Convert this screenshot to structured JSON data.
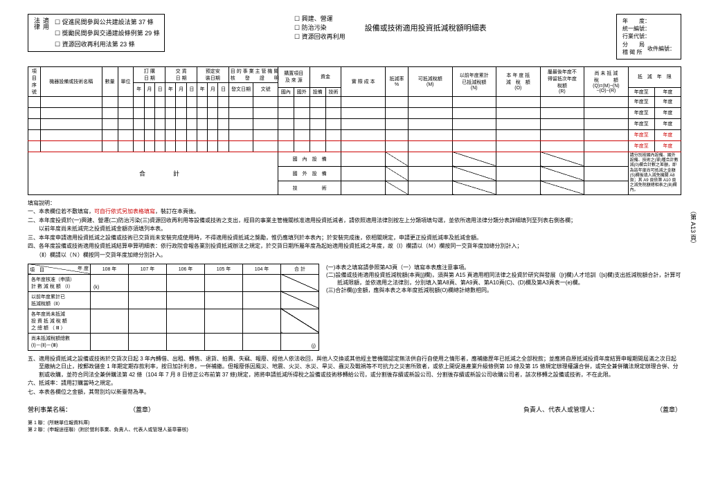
{
  "lawBox": {
    "labelTop": "適用",
    "labelBottom": "法律",
    "items": [
      "促進民間參與公共建設法第 37 條",
      "獎勵民間參與交通建設條例第 29 條",
      "資源回收再利用法第 23 條"
    ]
  },
  "centerBox": {
    "items": [
      "興建、營運",
      "防治污染",
      "資源回收再利用"
    ],
    "title": "設備或技術適用投資抵減稅額明細表"
  },
  "infoBox": {
    "rows": [
      "年　　度：",
      "統一編號：",
      "行業代號：",
      "分　　局",
      "稽 徵 所"
    ],
    "receipt": "收件編號："
  },
  "pageSide": "（第 A13 頁）",
  "mainTable": {
    "headers": {
      "seq": "項目序號",
      "name": "機器設備或技術名稱",
      "qty": "數量",
      "unit": "單位",
      "orderDate": "訂 購\n日 期",
      "deliverDate": "交 貨\n日 期",
      "scheduled": "預定安\n裝日期",
      "bizAuth": "目 的 事 業 主 管 機 關\n核　　發　　證　　明",
      "purchase": "購置項目\n及 來 源",
      "fund": "資金",
      "actualCost": "實 際 成 本",
      "rate": "抵減率\n%",
      "deductible": "可抵減稅額\n(M)",
      "prevDeducted": "以前年度累計\n已抵減稅額\n(N)",
      "currDeducted": "本 年 度 抵\n減　稅　額\n(O)",
      "lastYear": "屬最後年度不\n得留抵次年度\n稅額\n(R)",
      "netDeduct": "尚 未 抵 減\n稅　　　額\n(Q)=(M)−(N)\n−(O)−(R)",
      "deductYear": "抵　減　年　限",
      "ymd": [
        "年",
        "月",
        "日"
      ],
      "docDate": "發文日期",
      "docNo": "文號",
      "domestic": "國內",
      "foreign": "國外",
      "equipment": "設備",
      "tech": "技術",
      "yrTo": "年度至",
      "yr": "年度"
    },
    "sumRows": [
      {
        "label": "合",
        "label2": "計",
        "c1": "國　內　設　備"
      },
      {
        "c1": "國　外　設　備"
      },
      {
        "c1": "技　　　　　術"
      }
    ],
    "sideNote": "請分別按國內設備、國外設備、技術之(單)種合計數減(0)欄合計數之差額，即為該年度尚可抵減之金額(S)欄後填入減免機關 A8 頁；其 A9 頁依第 A10 頁之減免稅額總相表之(B)欄內。"
  },
  "notesTitle": "填寫說明：",
  "notes": [
    "一、本表欄位若不敷填寫，<span class='red'>可自行依式另加表格填寫</span>，裝訂在本頁後。",
    "二、本年度投資於(一)興建、營運(二)防治污染(三)資源回收再利用等設備或技術之支出，經目的事業主管機關核准適用投資抵減者，請依照適用法律別按左上分類項填勾選，並依所適用法律分類分表詳細填列至列表右側各欄；",
    "　　以前年度尚未抵減完之投資抵減金額亦須填列本表。",
    "三、本年度申請適用投資抵減之設備或技術已交貨尚未安裝完成使用時，不得適用投資抵減之獎勵，惟仍應填列於本表內；於安裝完成後，依相關規定，申請更正投資抵減率及抵減金額。",
    "四、各年度設備或技術適用投資抵減結算申算明細表：依行政院會報各業別投資抵減辦法之規定，於交貨日期所屬年度為起始適用投資抵減之年度，故（Ⅰ）欄請以（Ｍ）欄按同一交貨年度加總分別計入；",
    "　　（Ⅱ）欄請以（Ｎ）欄按同一交貨年度加總分別計入。"
  ],
  "yearTable": {
    "headerYear": "年 度",
    "headerItem": "項　目",
    "years": [
      "108 年",
      "107 年",
      "106 年",
      "105 年",
      "104 年",
      "合 計"
    ],
    "rows": [
      "各年度核准（申請）\n計 數 減 稅 額 （Ⅰ）",
      "以前年度累計已\n抵減稅額（Ⅱ）",
      "各年度尚未抵減\n投 資 抵 減 稅 額\n之 總 額 （ Ⅲ ）",
      "尚未抵減稅額總數\n(Ⅰ)－(Ⅱ)－(Ⅲ)"
    ],
    "marks": {
      "k": "(k)",
      "j": "(j)"
    }
  },
  "yearNotes": [
    "(一)本表之填寫請參照第A3頁（一）填寫本表應注意事項。",
    "(二)設備或技術適用投資抵減稅額(本頁[j]欄)，須與第 A15 頁適用相同法律之投資於研究與發展（[r]欄)人才培訓（[s]欄)支出抵減稅額合計，計算可抵減限額，並依適用之法律別，分別填入第A8頁、第A9頁、第A10頁(C)、(D)欄及第A3頁表一(e)欄。",
    "(三)合計欄(j)金額，應與本表之本年度抵減稅額(O)欄總計總數相同。"
  ],
  "notes2": [
    "五、適用投資抵減之設備或技術於交貨次日起 3 年內轉借、出租、轉售、退貨、拍賣、失竊、報廢、經他人依法收回，與他人交換或其他經主管機關認定無法供自行自使用之情形者，應補繳歷年已抵減之全部稅款；並應將自原抵減投資年度結算申報期間屆滿之次日起至繳納之日止，按郵政儲金 1 年期定期存款利率，按日加計利息，一併補繳。但報廢係因風災、地震、火災、水災、旱災、蟲災及戰禍等不可抗力之災害所致者，或依上開促進產業升級條例第 10 條及第 15 條規定辦理權讓合併，或完全兼併購法規定辦理合併、分割或收購，並符合同法全兼併購法第 42 條（104 年 7 月 8 日修正公布前第 37 條)規定，將將申請抵減所得稅之設備或技術移轉給公司，或分割後存續或新設公司、分割後存續或新設公司收購公司者，該次移轉之設備或技術，不在此限。",
    "六、抵減率：請用訂購當時之規定。",
    "七、本表各欄位之金額，其幣別均以新臺幣為準。"
  ],
  "sign": {
    "biz": "營利事業名稱：",
    "stamp": "（蓋章）",
    "person": "負責人、代表人或管理人：",
    "stamp2": "（蓋章）"
  },
  "footer": [
    "第 1 聯：(所轄單位報資料庫)",
    "第 2 聯：(申報途徑聯）(附於營利事業、負責人、代表人或管理人蓋章審核)"
  ]
}
